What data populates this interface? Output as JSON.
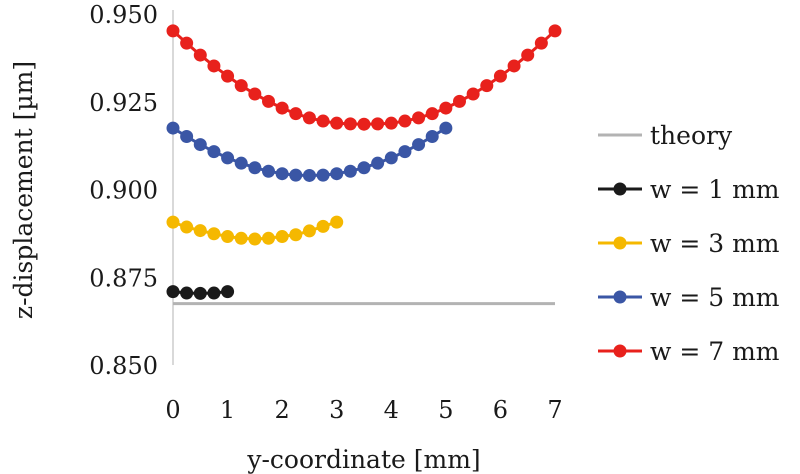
{
  "chart_data": {
    "type": "line",
    "title": "",
    "xlabel": "y-coordinate [mm]",
    "ylabel": "z-displacement [µm]",
    "xlim": [
      0,
      7
    ],
    "ylim": [
      0.85,
      0.95
    ],
    "x_ticks": [
      0,
      1,
      2,
      3,
      4,
      5,
      6,
      7
    ],
    "x_tick_labels": [
      "0",
      "1",
      "2",
      "3",
      "4",
      "5",
      "6",
      "7"
    ],
    "y_ticks": [
      0.85,
      0.875,
      0.9,
      0.925,
      0.95
    ],
    "y_tick_labels": [
      "0.850",
      "0.875",
      "0.900",
      "0.925",
      "0.950"
    ],
    "grid": false,
    "legend_position": "right",
    "series": [
      {
        "name": "theory",
        "color": "#b3b3b3",
        "marker": false,
        "x": [
          0,
          7
        ],
        "y": [
          0.8675,
          0.8675
        ]
      },
      {
        "name": "w = 1 mm",
        "color": "#1a1a1a",
        "marker": true,
        "x": [
          0,
          0.25,
          0.5,
          0.75,
          1.0
        ],
        "y": [
          0.8709,
          0.8705,
          0.8704,
          0.8705,
          0.8709
        ]
      },
      {
        "name": "w = 3 mm",
        "color": "#f5b800",
        "marker": true,
        "x": [
          0,
          0.25,
          0.5,
          0.75,
          1.0,
          1.25,
          1.5,
          1.75,
          2.0,
          2.25,
          2.5,
          2.75,
          3.0
        ],
        "y": [
          0.8907,
          0.8893,
          0.8883,
          0.8874,
          0.8866,
          0.8861,
          0.8859,
          0.8861,
          0.8866,
          0.8871,
          0.8882,
          0.8895,
          0.8907
        ]
      },
      {
        "name": "w = 5 mm",
        "color": "#3a56a5",
        "marker": true,
        "x": [
          0,
          0.25,
          0.5,
          0.75,
          1.0,
          1.25,
          1.5,
          1.75,
          2.0,
          2.25,
          2.5,
          2.75,
          3.0,
          3.25,
          3.5,
          3.75,
          4.0,
          4.25,
          4.5,
          4.75,
          5.0
        ],
        "y": [
          0.9175,
          0.9151,
          0.9128,
          0.9108,
          0.909,
          0.9075,
          0.9062,
          0.9052,
          0.9045,
          0.9041,
          0.904,
          0.9041,
          0.9045,
          0.9052,
          0.9062,
          0.9075,
          0.909,
          0.9108,
          0.9128,
          0.9151,
          0.9175
        ]
      },
      {
        "name": "w = 7 mm",
        "color": "#e8211c",
        "marker": true,
        "x": [
          0,
          0.25,
          0.5,
          0.75,
          1.0,
          1.25,
          1.5,
          1.75,
          2.0,
          2.25,
          2.5,
          2.75,
          3.0,
          3.25,
          3.5,
          3.75,
          4.0,
          4.25,
          4.5,
          4.75,
          5.0,
          5.25,
          5.5,
          5.75,
          6.0,
          6.25,
          6.5,
          6.75,
          7.0
        ],
        "y": [
          0.9452,
          0.9417,
          0.9383,
          0.9352,
          0.9323,
          0.9296,
          0.9272,
          0.9251,
          0.9232,
          0.9216,
          0.9204,
          0.9195,
          0.9189,
          0.9187,
          0.9186,
          0.9187,
          0.9189,
          0.9195,
          0.9204,
          0.9216,
          0.9232,
          0.9251,
          0.9272,
          0.9296,
          0.9323,
          0.9352,
          0.9383,
          0.9417,
          0.9452
        ]
      }
    ]
  }
}
